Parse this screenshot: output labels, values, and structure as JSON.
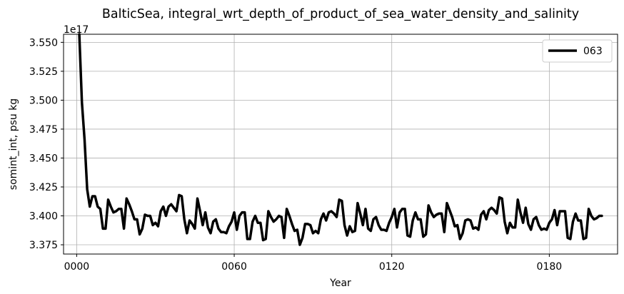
{
  "chart_data": {
    "type": "line",
    "title": "BalticSea, integral_wrt_depth_of_product_of_sea_water_density_and_salinity",
    "xlabel": "Year",
    "ylabel": "somint_int, psu kg",
    "y_offset_label": "1e17",
    "xlim": [
      -5,
      206
    ],
    "ylim": [
      3.367,
      3.557
    ],
    "x_ticks": [
      0,
      60,
      120,
      180
    ],
    "x_tick_labels": [
      "0000",
      "0060",
      "0120",
      "0180"
    ],
    "y_ticks": [
      3.375,
      3.4,
      3.425,
      3.45,
      3.475,
      3.5,
      3.525,
      3.55
    ],
    "y_tick_labels": [
      "3.375",
      "3.400",
      "3.425",
      "3.450",
      "3.475",
      "3.500",
      "3.525",
      "3.550"
    ],
    "grid": true,
    "legend_position": "top-right",
    "series": [
      {
        "name": "063",
        "color": "#000000",
        "x_start": 1,
        "x_step": 1,
        "values": [
          3.557,
          3.498,
          3.466,
          3.423,
          3.408,
          3.417,
          3.417,
          3.408,
          3.406,
          3.389,
          3.389,
          3.414,
          3.408,
          3.403,
          3.404,
          3.406,
          3.406,
          3.389,
          3.415,
          3.41,
          3.404,
          3.397,
          3.397,
          3.384,
          3.389,
          3.401,
          3.4,
          3.4,
          3.392,
          3.394,
          3.391,
          3.404,
          3.408,
          3.4,
          3.408,
          3.41,
          3.407,
          3.404,
          3.418,
          3.417,
          3.397,
          3.385,
          3.396,
          3.393,
          3.389,
          3.415,
          3.404,
          3.392,
          3.403,
          3.39,
          3.385,
          3.395,
          3.397,
          3.389,
          3.386,
          3.386,
          3.385,
          3.391,
          3.395,
          3.403,
          3.388,
          3.4,
          3.403,
          3.403,
          3.38,
          3.38,
          3.395,
          3.4,
          3.394,
          3.394,
          3.379,
          3.38,
          3.404,
          3.399,
          3.395,
          3.397,
          3.4,
          3.399,
          3.381,
          3.406,
          3.4,
          3.393,
          3.387,
          3.388,
          3.375,
          3.381,
          3.393,
          3.393,
          3.392,
          3.385,
          3.387,
          3.385,
          3.397,
          3.402,
          3.396,
          3.403,
          3.404,
          3.402,
          3.399,
          3.414,
          3.413,
          3.392,
          3.383,
          3.391,
          3.386,
          3.387,
          3.411,
          3.402,
          3.392,
          3.406,
          3.389,
          3.387,
          3.397,
          3.399,
          3.392,
          3.388,
          3.388,
          3.387,
          3.394,
          3.399,
          3.406,
          3.39,
          3.403,
          3.406,
          3.406,
          3.383,
          3.382,
          3.396,
          3.403,
          3.397,
          3.397,
          3.382,
          3.384,
          3.409,
          3.403,
          3.399,
          3.401,
          3.402,
          3.402,
          3.386,
          3.411,
          3.405,
          3.399,
          3.391,
          3.392,
          3.38,
          3.385,
          3.396,
          3.397,
          3.396,
          3.389,
          3.39,
          3.388,
          3.401,
          3.404,
          3.397,
          3.405,
          3.407,
          3.405,
          3.402,
          3.416,
          3.415,
          3.395,
          3.385,
          3.394,
          3.39,
          3.39,
          3.414,
          3.403,
          3.394,
          3.407,
          3.393,
          3.388,
          3.397,
          3.399,
          3.392,
          3.388,
          3.389,
          3.388,
          3.394,
          3.397,
          3.405,
          3.392,
          3.404,
          3.404,
          3.404,
          3.381,
          3.38,
          3.395,
          3.402,
          3.396,
          3.396,
          3.38,
          3.381,
          3.406,
          3.4,
          3.397,
          3.398,
          3.4,
          3.4
        ]
      }
    ]
  }
}
